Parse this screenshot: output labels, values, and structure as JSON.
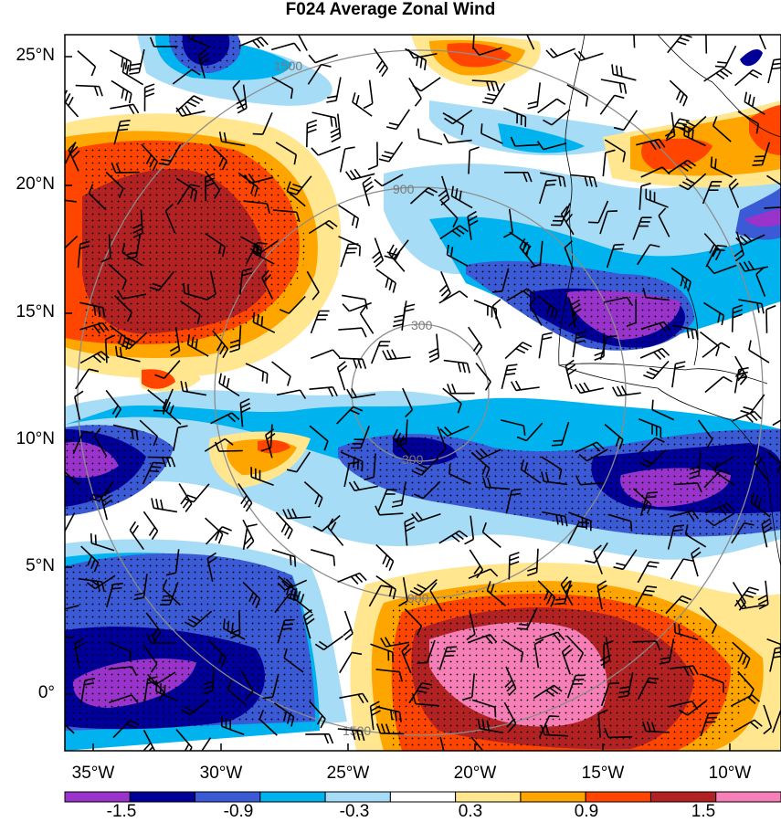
{
  "title": "F024 Average Zonal Wind",
  "lat_labels": [
    "25°N",
    "20°N",
    "15°N",
    "10°N",
    "5°N",
    "0°"
  ],
  "lon_labels": [
    "35°W",
    "30°W",
    "25°W",
    "20°W",
    "15°W",
    "10°W"
  ],
  "range_ring_labels": [
    "300",
    "900",
    "1500"
  ],
  "colorbar": {
    "colors": [
      "#9933cc",
      "#000099",
      "#3b5bd6",
      "#00b2ee",
      "#a6dcf5",
      "#ffffff",
      "#ffe68f",
      "#ffa500",
      "#ff4500",
      "#b22222",
      "#f77fb8"
    ],
    "labels": [
      "-1.5",
      "-0.9",
      "-0.3",
      "0.3",
      "0.9",
      "1.5"
    ]
  }
}
